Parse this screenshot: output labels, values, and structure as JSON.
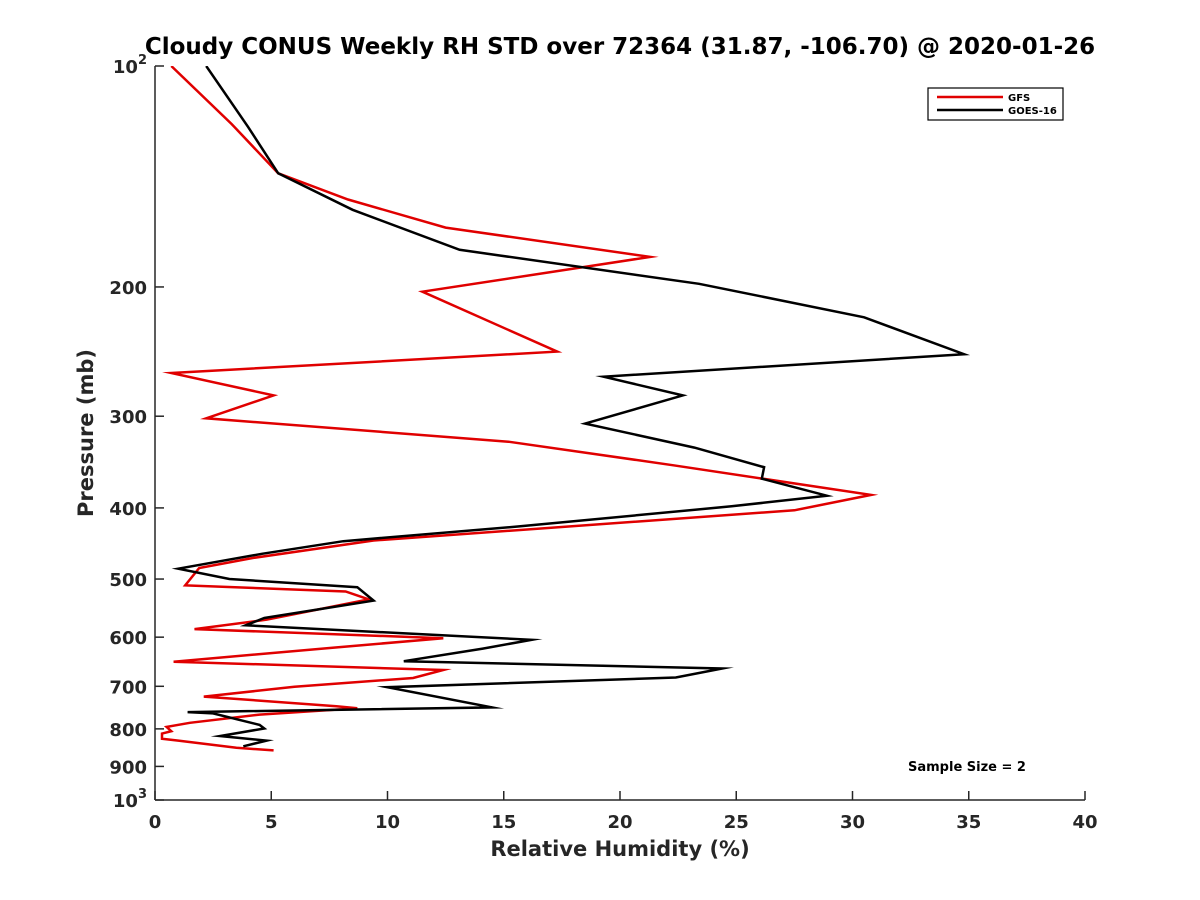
{
  "chart_data": {
    "type": "line",
    "title": "Cloudy CONUS Weekly RH STD over 72364 (31.87, -106.70) @ 2020-01-26",
    "xlabel": "Relative Humidity (%)",
    "ylabel": "Pressure (mb)",
    "xlim": [
      0,
      40
    ],
    "ylim": [
      100,
      1000
    ],
    "y_scale": "log",
    "y_reversed": true,
    "x_ticks": [
      0,
      5,
      10,
      15,
      20,
      25,
      30,
      35,
      40
    ],
    "x_tick_labels": [
      "0",
      "5",
      "10",
      "15",
      "20",
      "25",
      "30",
      "35",
      "40"
    ],
    "y_ticks": [
      {
        "value": 100,
        "label": "10",
        "sup": "2"
      },
      {
        "value": 200,
        "label": "200"
      },
      {
        "value": 300,
        "label": "300"
      },
      {
        "value": 400,
        "label": "400"
      },
      {
        "value": 500,
        "label": "500"
      },
      {
        "value": 600,
        "label": "600"
      },
      {
        "value": 700,
        "label": "700"
      },
      {
        "value": 800,
        "label": "800"
      },
      {
        "value": 900,
        "label": "900"
      },
      {
        "value": 1000,
        "label": "10",
        "sup": "3"
      }
    ],
    "grid": false,
    "legend_position": "top-right",
    "annotation": "Sample Size = 2",
    "series": [
      {
        "name": "GFS",
        "color": "#e00000",
        "points": [
          [
            0.7,
            100
          ],
          [
            3.3,
            120
          ],
          [
            5.3,
            140
          ],
          [
            8.3,
            152
          ],
          [
            12.5,
            166
          ],
          [
            21.3,
            182
          ],
          [
            11.5,
            203
          ],
          [
            17.3,
            245
          ],
          [
            0.7,
            262
          ],
          [
            5.1,
            281
          ],
          [
            2.2,
            302
          ],
          [
            15.2,
            325
          ],
          [
            22.3,
            350
          ],
          [
            30.8,
            384
          ],
          [
            27.5,
            403
          ],
          [
            9.4,
            443
          ],
          [
            4.2,
            468
          ],
          [
            1.9,
            483
          ],
          [
            1.3,
            510
          ],
          [
            8.2,
            520
          ],
          [
            9.2,
            533
          ],
          [
            4.8,
            568
          ],
          [
            1.7,
            585
          ],
          [
            12.4,
            602
          ],
          [
            7.7,
            620
          ],
          [
            0.8,
            648
          ],
          [
            12.4,
            665
          ],
          [
            11.1,
            682
          ],
          [
            6.0,
            701
          ],
          [
            2.1,
            723
          ],
          [
            7.8,
            745
          ],
          [
            8.7,
            750
          ],
          [
            4.5,
            765
          ],
          [
            1.5,
            785
          ],
          [
            0.5,
            795
          ],
          [
            0.7,
            806
          ],
          [
            0.3,
            812
          ],
          [
            0.3,
            825
          ],
          [
            1.0,
            830
          ],
          [
            3.5,
            849
          ],
          [
            5.1,
            856
          ]
        ]
      },
      {
        "name": "GOES-16",
        "color": "#000000",
        "points": [
          [
            2.2,
            100
          ],
          [
            4.0,
            121
          ],
          [
            5.3,
            140
          ],
          [
            8.5,
            157
          ],
          [
            13.1,
            178
          ],
          [
            23.4,
            198
          ],
          [
            30.5,
            220
          ],
          [
            34.8,
            247
          ],
          [
            19.3,
            265
          ],
          [
            22.7,
            281
          ],
          [
            18.5,
            307
          ],
          [
            23.2,
            331
          ],
          [
            26.2,
            352
          ],
          [
            26.1,
            365
          ],
          [
            28.9,
            385
          ],
          [
            24.8,
            398
          ],
          [
            15.6,
            424
          ],
          [
            8.1,
            444
          ],
          [
            4.6,
            462
          ],
          [
            1.0,
            484
          ],
          [
            3.2,
            500
          ],
          [
            8.7,
            513
          ],
          [
            9.4,
            535
          ],
          [
            4.7,
            565
          ],
          [
            3.9,
            578
          ],
          [
            16.2,
            605
          ],
          [
            14.1,
            622
          ],
          [
            10.7,
            647
          ],
          [
            24.4,
            662
          ],
          [
            22.4,
            681
          ],
          [
            10.0,
            702
          ],
          [
            14.5,
            748
          ],
          [
            1.4,
            759
          ],
          [
            2.5,
            762
          ],
          [
            4.5,
            790
          ],
          [
            4.7,
            799
          ],
          [
            2.8,
            818
          ],
          [
            4.8,
            830
          ],
          [
            3.8,
            845
          ]
        ]
      }
    ]
  }
}
